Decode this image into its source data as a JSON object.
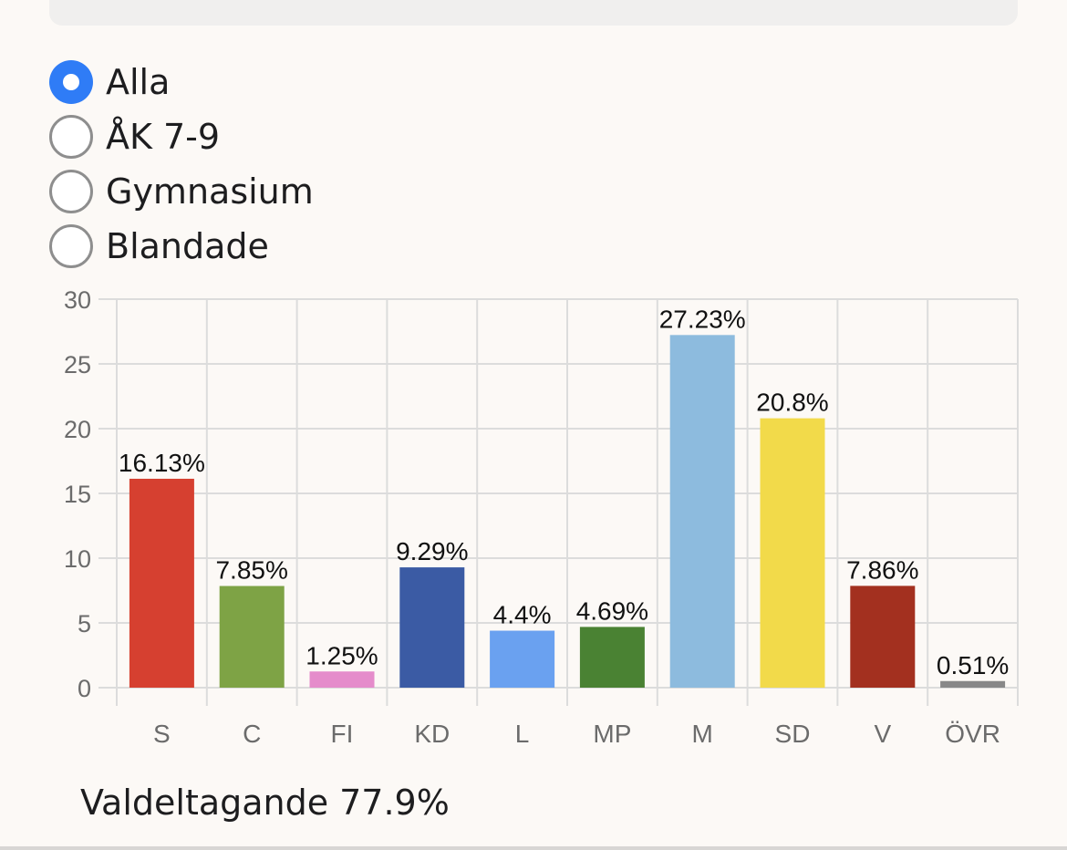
{
  "filters": {
    "options": [
      {
        "label": "Alla",
        "selected": true
      },
      {
        "label": "ÅK 7-9",
        "selected": false
      },
      {
        "label": "Gymnasium",
        "selected": false
      },
      {
        "label": "Blandade",
        "selected": false
      }
    ]
  },
  "chart_data": {
    "type": "bar",
    "categories": [
      "S",
      "C",
      "FI",
      "KD",
      "L",
      "MP",
      "M",
      "SD",
      "V",
      "ÖVR"
    ],
    "values": [
      16.13,
      7.85,
      1.25,
      9.29,
      4.4,
      4.69,
      27.23,
      20.8,
      7.86,
      0.51
    ],
    "labels": [
      "16.13%",
      "7.85%",
      "1.25%",
      "9.29%",
      "4.4%",
      "4.69%",
      "27.23%",
      "20.8%",
      "7.86%",
      "0.51%"
    ],
    "colors": [
      "#d64030",
      "#7ea345",
      "#e58ccb",
      "#3b5ba4",
      "#6aa1f0",
      "#4a8233",
      "#8dbbde",
      "#f2da4a",
      "#a3301f",
      "#888888"
    ],
    "ylim": [
      0,
      30
    ],
    "yticks": [
      0,
      5,
      10,
      15,
      20,
      25,
      30
    ],
    "grid": true
  },
  "footer": {
    "label": "Valdeltagande",
    "value": "77.9%"
  }
}
